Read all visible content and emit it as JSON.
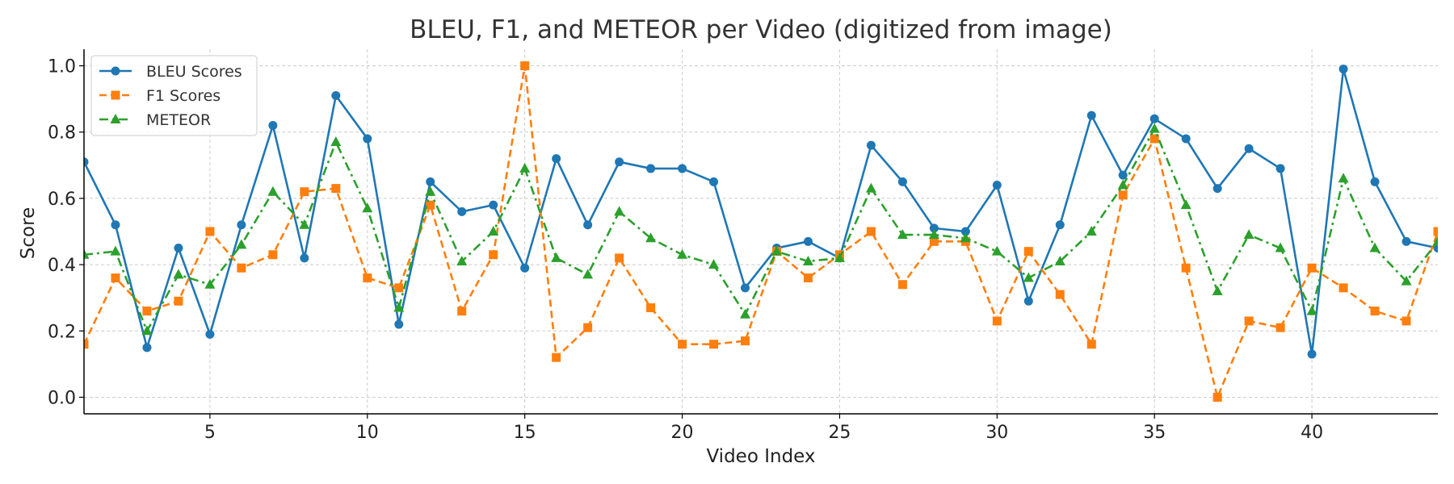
{
  "chart_data": {
    "type": "line",
    "title": "BLEU, F1, and METEOR per Video (digitized from image)",
    "xlabel": "Video Index",
    "ylabel": "Score",
    "xlim": [
      1,
      44
    ],
    "ylim": [
      -0.05,
      1.05
    ],
    "xticks": [
      5,
      10,
      15,
      20,
      25,
      30,
      35,
      40
    ],
    "yticks": [
      0.0,
      0.2,
      0.4,
      0.6,
      0.8,
      1.0
    ],
    "grid": true,
    "legend_position": "top-left",
    "x": [
      1,
      2,
      3,
      4,
      5,
      6,
      7,
      8,
      9,
      10,
      11,
      12,
      13,
      14,
      15,
      16,
      17,
      18,
      19,
      20,
      21,
      22,
      23,
      24,
      25,
      26,
      27,
      28,
      29,
      30,
      31,
      32,
      33,
      34,
      35,
      36,
      37,
      38,
      39,
      40,
      41,
      42,
      43,
      44
    ],
    "series": [
      {
        "name": "BLEU Scores",
        "color": "#1f77b4",
        "linestyle": "solid",
        "marker": "circle",
        "values": [
          0.71,
          0.52,
          0.15,
          0.45,
          0.19,
          0.52,
          0.82,
          0.42,
          0.91,
          0.78,
          0.22,
          0.65,
          0.56,
          0.58,
          0.39,
          0.72,
          0.52,
          0.71,
          0.69,
          0.69,
          0.65,
          0.33,
          0.45,
          0.47,
          0.42,
          0.76,
          0.65,
          0.51,
          0.5,
          0.64,
          0.29,
          0.52,
          0.85,
          0.67,
          0.84,
          0.78,
          0.63,
          0.75,
          0.69,
          0.13,
          0.99,
          0.65,
          0.47,
          0.45
        ]
      },
      {
        "name": "F1 Scores",
        "color": "#ff7f0e",
        "linestyle": "dashed",
        "marker": "square",
        "values": [
          0.16,
          0.36,
          0.26,
          0.29,
          0.5,
          0.39,
          0.43,
          0.62,
          0.63,
          0.36,
          0.33,
          0.58,
          0.26,
          0.43,
          1.0,
          0.12,
          0.21,
          0.42,
          0.27,
          0.16,
          0.16,
          0.17,
          0.44,
          0.36,
          0.43,
          0.5,
          0.34,
          0.47,
          0.47,
          0.23,
          0.44,
          0.31,
          0.16,
          0.61,
          0.78,
          0.39,
          0.0,
          0.23,
          0.21,
          0.39,
          0.33,
          0.26,
          0.23,
          0.5
        ]
      },
      {
        "name": "METEOR",
        "color": "#2ca02c",
        "linestyle": "dashdot",
        "marker": "triangle",
        "values": [
          0.43,
          0.44,
          0.2,
          0.37,
          0.34,
          0.46,
          0.62,
          0.52,
          0.77,
          0.57,
          0.27,
          0.62,
          0.41,
          0.5,
          0.69,
          0.42,
          0.37,
          0.56,
          0.48,
          0.43,
          0.4,
          0.25,
          0.44,
          0.41,
          0.42,
          0.63,
          0.49,
          0.49,
          0.48,
          0.44,
          0.36,
          0.41,
          0.5,
          0.64,
          0.81,
          0.58,
          0.32,
          0.49,
          0.45,
          0.26,
          0.66,
          0.45,
          0.35,
          0.47
        ]
      }
    ]
  }
}
